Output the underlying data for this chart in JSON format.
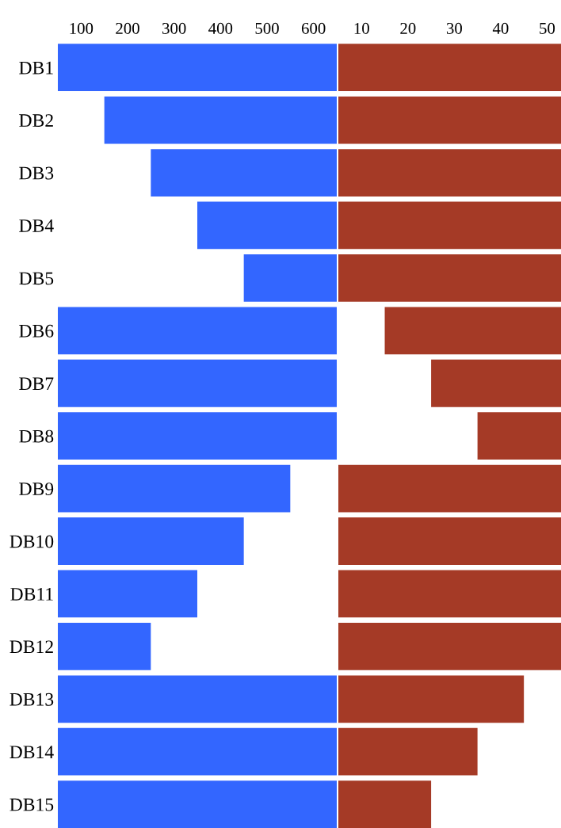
{
  "chart_data": [
    {
      "type": "bar",
      "orientation": "horizontal",
      "categories": [
        "DB1",
        "DB2",
        "DB3",
        "DB4",
        "DB5",
        "DB6",
        "DB7",
        "DB8",
        "DB9",
        "DB10",
        "DB11",
        "DB12",
        "DB13",
        "DB14",
        "DB15"
      ],
      "values": [
        600,
        500,
        400,
        300,
        200,
        600,
        600,
        600,
        500,
        400,
        300,
        200,
        600,
        600,
        600
      ],
      "base": [
        50,
        150,
        250,
        350,
        450,
        50,
        50,
        50,
        50,
        50,
        50,
        50,
        50,
        50,
        50
      ],
      "color": "#3366ff",
      "xlim": [
        50,
        650
      ],
      "xticks": [
        100,
        200,
        300,
        400,
        500,
        600
      ],
      "grid": false
    },
    {
      "type": "bar",
      "orientation": "horizontal",
      "categories": [
        null,
        null,
        null,
        null,
        null,
        null,
        null,
        null,
        null,
        null,
        null,
        null,
        null,
        null,
        null
      ],
      "values": [
        48,
        48,
        48,
        48,
        48,
        38,
        28,
        18,
        48,
        48,
        48,
        48,
        40,
        30,
        20
      ],
      "base": [
        5,
        5,
        5,
        5,
        5,
        15,
        25,
        35,
        5,
        5,
        5,
        5,
        5,
        5,
        5
      ],
      "color": "#a53a26",
      "xlim": [
        5,
        53
      ],
      "xticks": [
        10,
        20,
        30,
        40,
        50
      ],
      "tick_labels": "x",
      "grid": false
    }
  ]
}
